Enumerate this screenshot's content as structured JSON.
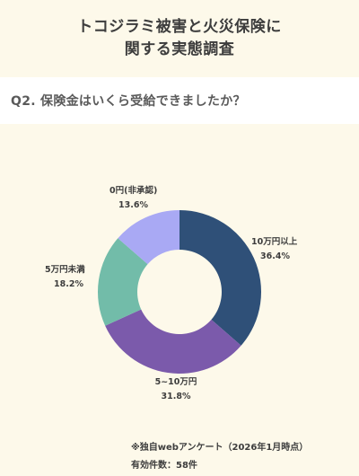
{
  "header": {
    "title_line1": "トコジラミ被害と火災保険に",
    "title_line2": "関する実態調査"
  },
  "question": "Q2. 保険金はいくら受給できましたか？",
  "chart_data": {
    "type": "pie",
    "donut": true,
    "categories": [
      "10万円以上",
      "5~10万円",
      "5万円未満",
      "0円(非承認)"
    ],
    "values": [
      36.4,
      31.8,
      18.2,
      13.6
    ],
    "value_labels": [
      "36.4%",
      "31.8%",
      "18.2%",
      "13.6%"
    ],
    "colors": [
      "#2f5078",
      "#7b5aab",
      "#72bca9",
      "#a9a9f4"
    ],
    "start_angle_deg": 0,
    "direction": "clockwise"
  },
  "footer": {
    "note": "※独自webアンケート（2026年1月時点）",
    "count": "有効件数：58件"
  }
}
